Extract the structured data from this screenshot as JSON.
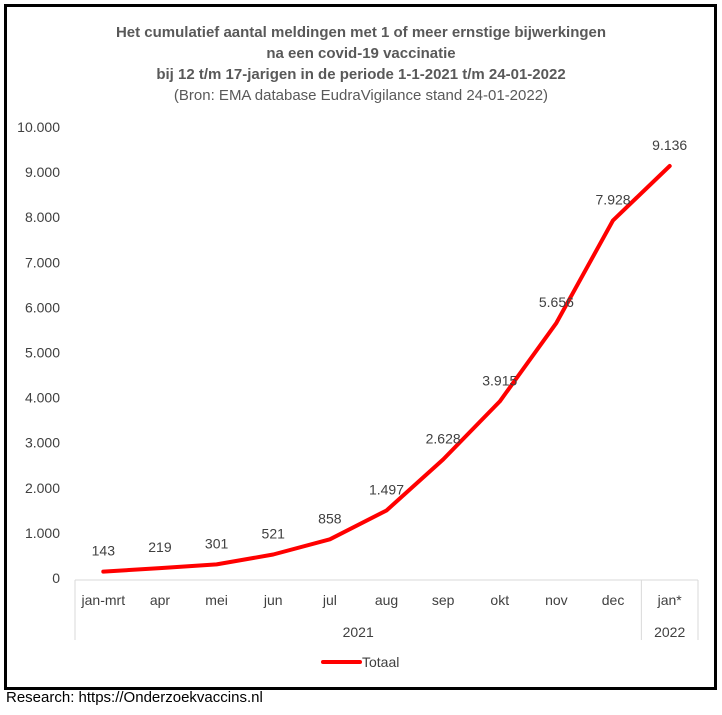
{
  "chart_data": {
    "type": "line",
    "title": [
      "Het cumulatief aantal meldingen met 1 of meer ernstige bijwerkingen",
      "na een covid-19 vaccinatie",
      "bij 12 t/m 17-jarigen in de periode 1-1-2021 t/m 24-01-2022"
    ],
    "subtitle": "(Bron: EMA database EudraVigilance stand 24-01-2022)",
    "categories": [
      "jan-mrt",
      "apr",
      "mei",
      "jun",
      "jul",
      "aug",
      "sep",
      "okt",
      "nov",
      "dec",
      "jan*"
    ],
    "year_groups": [
      {
        "label": "2021",
        "count": 10
      },
      {
        "label": "2022",
        "count": 1
      }
    ],
    "series": [
      {
        "name": "Totaal",
        "color": "#ff0000",
        "values": [
          143,
          219,
          301,
          521,
          858,
          1497,
          2628,
          3915,
          5656,
          7928,
          9136
        ],
        "labels": [
          "143",
          "219",
          "301",
          "521",
          "858",
          "1.497",
          "2.628",
          "3.915",
          "5.656",
          "7.928",
          "9.136"
        ]
      }
    ],
    "ylim": [
      0,
      10000
    ],
    "yticks": [
      "0",
      "1.000",
      "2.000",
      "3.000",
      "4.000",
      "5.000",
      "6.000",
      "7.000",
      "8.000",
      "9.000",
      "10.000"
    ],
    "grid": false,
    "legend": "bottom"
  },
  "credit": "Research: https://Onderzoekvaccins.nl"
}
